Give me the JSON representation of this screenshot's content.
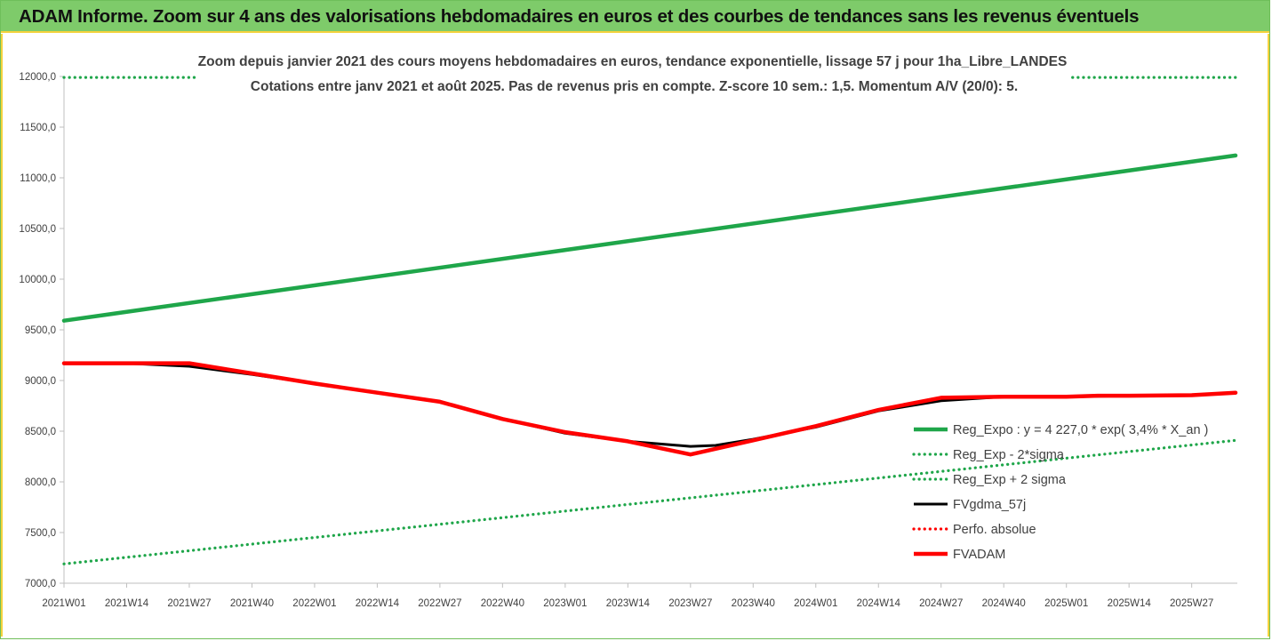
{
  "header": {
    "banner": "ADAM Informe. Zoom sur 4 ans des valorisations hebdomadaires en euros et des courbes de tendances sans les revenus éventuels"
  },
  "colors": {
    "banner_bg": "#7ecb6a",
    "banner_border": "#f4d23c",
    "reg_expo": "#1fa64a",
    "fvgdma": "#000000",
    "fvadam": "#ff0000",
    "perfo": "#ff0000"
  },
  "chart_data": {
    "type": "line",
    "title": "Zoom depuis janvier 2021 des cours moyens hebdomadaires en euros, tendance exponentielle, lissage 57 j pour 1ha_Libre_LANDES",
    "subtitle": "Cotations entre janv 2021 et août 2025.  Pas de revenus pris en compte. Z-score 10 sem.: 1,5. Momentum A/V (20/0): 5.",
    "xlabel": "",
    "ylabel": "",
    "ylim": [
      7000,
      12000
    ],
    "y_ticks": [
      "7000,0",
      "7500,0",
      "8000,0",
      "8500,0",
      "9000,0",
      "9500,0",
      "10000,0",
      "10500,0",
      "11000,0",
      "11500,0",
      "12000,0"
    ],
    "x_ticks": [
      "2021W01",
      "2021W14",
      "2021W27",
      "2021W40",
      "2022W01",
      "2022W14",
      "2022W27",
      "2022W40",
      "2023W01",
      "2023W14",
      "2023W27",
      "2023W40",
      "2024W01",
      "2024W14",
      "2024W27",
      "2024W40",
      "2025W01",
      "2025W14",
      "2025W27"
    ],
    "x_end_index": 18.7,
    "legend_position": "bottom-right",
    "series": [
      {
        "name": "Reg_Expo : y = 4 227,0 * exp( 3,4% *  X_an )",
        "style": "solid-thick",
        "color": "#1fa64a",
        "points": [
          [
            0,
            9590
          ],
          [
            18.7,
            11220
          ]
        ]
      },
      {
        "name": "Reg_Exp - 2*sigma",
        "style": "dotted",
        "color": "#1fa64a",
        "points": [
          [
            0,
            7190
          ],
          [
            18.7,
            8410
          ]
        ]
      },
      {
        "name": "Reg_Exp + 2 sigma",
        "style": "dotted",
        "color": "#1fa64a",
        "points": [
          [
            0,
            11990
          ],
          [
            2.1,
            11990
          ]
        ],
        "points_b": [
          [
            16.1,
            11990
          ],
          [
            18.7,
            11990
          ]
        ]
      },
      {
        "name": "FVgdma_57j",
        "style": "solid",
        "color": "#000000",
        "points": [
          [
            0,
            9170
          ],
          [
            1,
            9170
          ],
          [
            2,
            9140
          ],
          [
            3,
            9060
          ],
          [
            4,
            8970
          ],
          [
            5,
            8880
          ],
          [
            6,
            8790
          ],
          [
            7,
            8620
          ],
          [
            8,
            8480
          ],
          [
            9,
            8400
          ],
          [
            10,
            8350
          ],
          [
            10.4,
            8360
          ],
          [
            11,
            8420
          ],
          [
            12,
            8540
          ],
          [
            13,
            8700
          ],
          [
            14,
            8800
          ],
          [
            15,
            8840
          ],
          [
            16,
            8840
          ],
          [
            17,
            8850
          ],
          [
            18,
            8855
          ],
          [
            18.7,
            8880
          ]
        ]
      },
      {
        "name": "Perfo. absolue",
        "style": "dotted",
        "color": "#ff0000",
        "points": []
      },
      {
        "name": "FVADAM",
        "style": "solid-thick",
        "color": "#ff0000",
        "points": [
          [
            0,
            9170
          ],
          [
            2,
            9170
          ],
          [
            3,
            9070
          ],
          [
            4,
            8970
          ],
          [
            5,
            8880
          ],
          [
            6,
            8790
          ],
          [
            7,
            8620
          ],
          [
            8,
            8490
          ],
          [
            9,
            8400
          ],
          [
            10,
            8270
          ],
          [
            11,
            8410
          ],
          [
            12,
            8550
          ],
          [
            13,
            8710
          ],
          [
            14,
            8830
          ],
          [
            15,
            8840
          ],
          [
            16,
            8840
          ],
          [
            16.5,
            8850
          ],
          [
            17,
            8850
          ],
          [
            18,
            8855
          ],
          [
            18.7,
            8880
          ]
        ]
      }
    ]
  }
}
